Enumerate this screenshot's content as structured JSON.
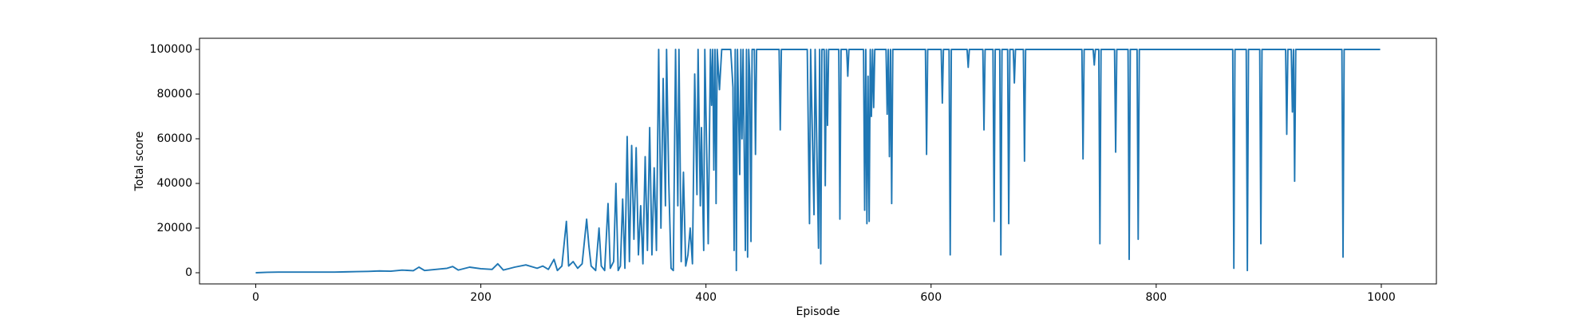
{
  "chart_data": {
    "type": "line",
    "xlabel": "Episode",
    "ylabel": "Total score",
    "x": [
      0,
      10,
      20,
      30,
      40,
      50,
      60,
      70,
      80,
      90,
      100,
      110,
      120,
      130,
      140,
      145,
      150,
      160,
      170,
      175,
      180,
      190,
      200,
      210,
      215,
      220,
      230,
      240,
      250,
      255,
      260,
      265,
      268,
      272,
      276,
      278,
      282,
      286,
      290,
      294,
      296,
      298,
      302,
      305,
      307,
      310,
      313,
      315,
      318,
      320,
      322,
      324,
      326,
      328,
      330,
      332,
      334,
      336,
      338,
      340,
      342,
      344,
      346,
      348,
      350,
      352,
      354,
      356,
      358,
      360,
      362,
      364,
      365,
      367,
      369,
      371,
      373,
      375,
      376,
      378,
      380,
      382,
      384,
      386,
      388,
      390,
      392,
      393,
      395,
      396,
      398,
      399,
      401,
      402,
      404,
      405,
      406,
      407,
      408,
      409,
      410,
      412,
      414,
      416,
      418,
      420,
      422,
      424,
      425,
      426,
      427,
      428,
      430,
      431,
      432,
      433,
      435,
      436,
      437,
      438,
      439,
      440,
      441,
      443,
      444,
      445,
      450,
      465,
      466,
      467,
      490,
      492,
      493,
      496,
      497,
      500,
      501,
      502,
      503,
      505,
      506,
      507,
      508,
      509,
      518,
      519,
      520,
      525,
      526,
      527,
      540,
      541,
      542,
      543,
      544,
      545,
      546,
      547,
      548,
      549,
      550,
      560,
      561,
      562,
      563,
      564,
      565,
      566,
      595,
      596,
      597,
      609,
      610,
      611,
      616,
      617,
      618,
      632,
      633,
      634,
      646,
      647,
      648,
      655,
      656,
      657,
      661,
      662,
      663,
      668,
      669,
      670,
      673,
      674,
      675,
      682,
      683,
      684,
      734,
      735,
      736,
      744,
      745,
      746,
      749,
      750,
      751,
      763,
      764,
      765,
      775,
      776,
      777,
      783,
      784,
      785,
      868,
      869,
      870,
      880,
      881,
      882,
      892,
      893,
      894,
      915,
      916,
      917,
      920,
      921,
      922,
      923,
      924,
      965,
      966,
      967,
      999
    ],
    "series": [
      {
        "color": "#1f77b4",
        "values": [
          0,
          200,
          300,
          300,
          300,
          300,
          300,
          300,
          400,
          500,
          600,
          800,
          700,
          1200,
          900,
          2500,
          1000,
          1500,
          2000,
          2800,
          1200,
          2500,
          1800,
          1500,
          4000,
          1200,
          2500,
          3500,
          2000,
          3000,
          1500,
          6000,
          1000,
          3000,
          23000,
          3000,
          5000,
          2000,
          4000,
          24000,
          12000,
          3000,
          1000,
          20000,
          3000,
          1000,
          31000,
          2000,
          5000,
          40000,
          1000,
          3000,
          33000,
          2000,
          61000,
          5000,
          57000,
          15000,
          56000,
          8000,
          30000,
          4000,
          52000,
          10000,
          65000,
          8000,
          47000,
          10000,
          100000,
          20000,
          87000,
          30000,
          100000,
          40000,
          2000,
          1000,
          100000,
          30000,
          100000,
          5000,
          45000,
          3000,
          8000,
          20000,
          4000,
          89000,
          35000,
          100000,
          30000,
          65000,
          10000,
          100000,
          45000,
          13000,
          100000,
          75000,
          100000,
          46000,
          100000,
          31000,
          100000,
          82000,
          100000,
          100000,
          100000,
          100000,
          100000,
          83000,
          10000,
          100000,
          1000,
          100000,
          44000,
          100000,
          60000,
          100000,
          10000,
          100000,
          7000,
          100000,
          87000,
          14000,
          100000,
          100000,
          53000,
          100000,
          100000,
          100000,
          64000,
          100000,
          100000,
          22000,
          100000,
          26000,
          100000,
          11000,
          100000,
          4000,
          100000,
          100000,
          39000,
          100000,
          66000,
          100000,
          100000,
          24000,
          100000,
          100000,
          88000,
          100000,
          100000,
          28000,
          100000,
          22000,
          88000,
          23000,
          100000,
          70000,
          100000,
          74000,
          100000,
          100000,
          71000,
          100000,
          52000,
          100000,
          31000,
          100000,
          100000,
          53000,
          100000,
          100000,
          76000,
          100000,
          100000,
          8000,
          100000,
          100000,
          92000,
          100000,
          100000,
          64000,
          100000,
          100000,
          23000,
          100000,
          100000,
          8000,
          100000,
          100000,
          22000,
          100000,
          100000,
          85000,
          100000,
          100000,
          50000,
          100000,
          100000,
          51000,
          100000,
          100000,
          93000,
          100000,
          100000,
          13000,
          100000,
          100000,
          54000,
          100000,
          100000,
          6000,
          100000,
          100000,
          15000,
          100000,
          100000,
          2000,
          100000,
          100000,
          1000,
          100000,
          100000,
          13000,
          100000,
          100000,
          62000,
          100000,
          100000,
          72000,
          100000,
          41000,
          100000,
          100000,
          7000,
          100000,
          100000
        ]
      }
    ],
    "xlim": [
      -49.95,
      1048.95
    ],
    "ylim": [
      -5000,
      105000
    ],
    "xticks": [
      0,
      200,
      400,
      600,
      800,
      1000
    ],
    "yticks": [
      0,
      20000,
      40000,
      60000,
      80000,
      100000
    ]
  }
}
